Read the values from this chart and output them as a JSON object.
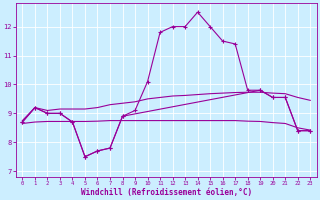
{
  "xlabel": "Windchill (Refroidissement éolien,°C)",
  "background_color": "#cceeff",
  "grid_color": "#ffffff",
  "line_color": "#990099",
  "xlim": [
    -0.5,
    23.5
  ],
  "ylim": [
    6.8,
    12.8
  ],
  "yticks": [
    7,
    8,
    9,
    10,
    11,
    12
  ],
  "xticks": [
    0,
    1,
    2,
    3,
    4,
    5,
    6,
    7,
    8,
    9,
    10,
    11,
    12,
    13,
    14,
    15,
    16,
    17,
    18,
    19,
    20,
    21,
    22,
    23
  ],
  "hours": [
    0,
    1,
    2,
    3,
    4,
    5,
    6,
    7,
    8,
    9,
    10,
    11,
    12,
    13,
    14,
    15,
    16,
    17,
    18,
    19,
    20,
    21,
    22,
    23
  ],
  "line_main": [
    8.7,
    9.2,
    9.0,
    9.0,
    8.7,
    7.5,
    7.7,
    7.8,
    8.9,
    9.1,
    10.1,
    11.8,
    12.0,
    12.0,
    12.5,
    12.0,
    11.5,
    11.4,
    9.8,
    9.8,
    9.55,
    9.55,
    8.4,
    8.4
  ],
  "line_lower_x": [
    0,
    1,
    2,
    3,
    4,
    5,
    6,
    7,
    8,
    19,
    20,
    21,
    22,
    23
  ],
  "line_lower_y": [
    8.7,
    9.2,
    9.0,
    9.0,
    8.7,
    7.5,
    7.7,
    7.8,
    8.9,
    9.8,
    9.55,
    9.55,
    8.4,
    8.4
  ],
  "line_upper_band": [
    8.75,
    9.2,
    9.1,
    9.15,
    9.15,
    9.15,
    9.2,
    9.3,
    9.35,
    9.4,
    9.5,
    9.55,
    9.6,
    9.62,
    9.65,
    9.68,
    9.7,
    9.72,
    9.73,
    9.73,
    9.7,
    9.68,
    9.55,
    9.45
  ],
  "line_flat_lower": [
    8.65,
    8.7,
    8.72,
    8.72,
    8.72,
    8.72,
    8.73,
    8.75,
    8.75,
    8.75,
    8.75,
    8.75,
    8.75,
    8.75,
    8.75,
    8.75,
    8.75,
    8.75,
    8.73,
    8.72,
    8.68,
    8.65,
    8.5,
    8.42
  ]
}
